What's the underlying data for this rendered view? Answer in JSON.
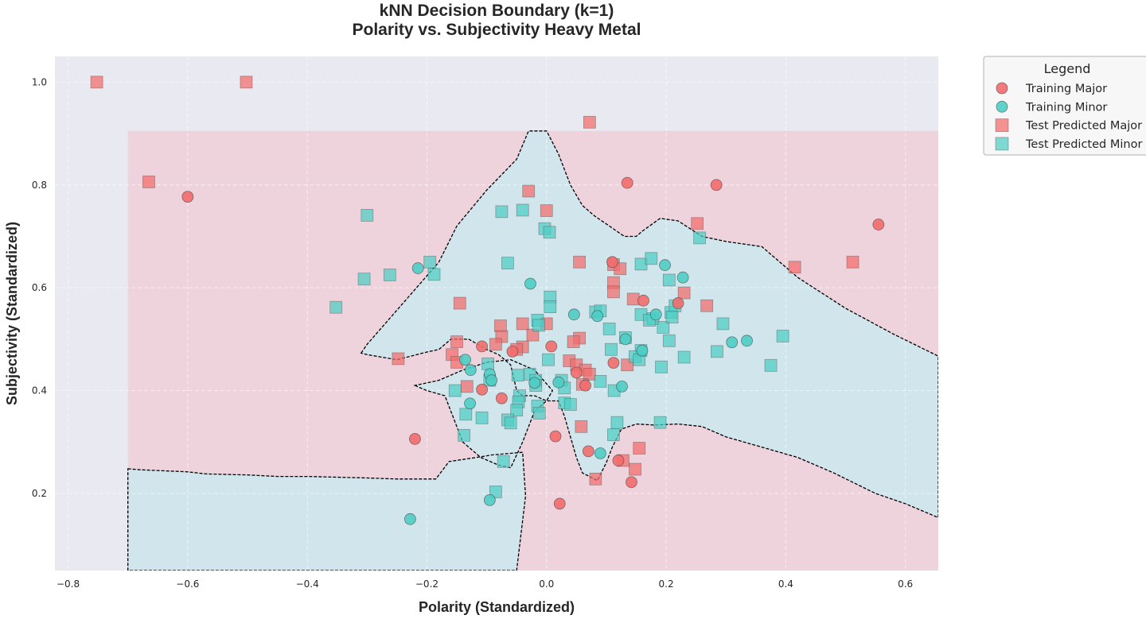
{
  "chart_data": {
    "type": "scatter",
    "title": "kNN Decision Boundary (k=1)",
    "subtitle": "Polarity vs. Subjectivity Heavy Metal",
    "xlabel": "Polarity (Standardized)",
    "ylabel": "Subjectivity (Standardized)",
    "xlim": [
      -0.822,
      0.655
    ],
    "ylim": [
      0.05,
      1.05
    ],
    "xticks": [
      "−0.8",
      "−0.6",
      "−0.4",
      "−0.2",
      "0.0",
      "0.2",
      "0.4",
      "0.6"
    ],
    "yticks": [
      "0.2",
      "0.4",
      "0.6",
      "0.8",
      "1.0"
    ],
    "grid": true,
    "legend": {
      "title": "Legend",
      "placement": "outside-top-right",
      "entries": [
        "Training Major",
        "Training Minor",
        "Test Predicted Major",
        "Test Predicted Minor"
      ]
    },
    "colors": {
      "major": "#f26b6b",
      "minor": "#4ecdc4",
      "region_major": "#efd3dc",
      "region_minor": "#d1e5ec",
      "plot_bg": "#e9e9f1",
      "boundary": "#000000"
    },
    "region_extent": {
      "x": [
        -0.7,
        0.655
      ],
      "y": [
        0.05,
        0.905
      ]
    },
    "region_default_class": "Major",
    "minor_regions": [
      [
        [
          -0.7,
          0.248
        ],
        [
          -0.68,
          0.246
        ],
        [
          -0.6,
          0.242
        ],
        [
          -0.57,
          0.238
        ],
        [
          -0.5,
          0.236
        ],
        [
          -0.45,
          0.233
        ],
        [
          -0.4,
          0.233
        ],
        [
          -0.3,
          0.23
        ],
        [
          -0.25,
          0.228
        ],
        [
          -0.185,
          0.228
        ],
        [
          -0.163,
          0.262
        ],
        [
          -0.117,
          0.27
        ],
        [
          -0.09,
          0.275
        ],
        [
          -0.06,
          0.278
        ],
        [
          -0.04,
          0.28
        ],
        [
          -0.035,
          0.195
        ],
        [
          -0.05,
          0.05
        ],
        [
          -0.7,
          0.05
        ]
      ],
      [
        [
          -0.31,
          0.473
        ],
        [
          -0.3,
          0.49
        ],
        [
          -0.24,
          0.57
        ],
        [
          -0.18,
          0.65
        ],
        [
          -0.15,
          0.72
        ],
        [
          -0.1,
          0.79
        ],
        [
          -0.05,
          0.85
        ],
        [
          -0.03,
          0.905
        ],
        [
          0.0,
          0.905
        ],
        [
          0.02,
          0.86
        ],
        [
          0.04,
          0.8
        ],
        [
          0.06,
          0.76
        ],
        [
          0.08,
          0.74
        ],
        [
          0.105,
          0.72
        ],
        [
          0.13,
          0.7
        ],
        [
          0.15,
          0.7
        ],
        [
          0.16,
          0.71
        ],
        [
          0.19,
          0.735
        ],
        [
          0.22,
          0.73
        ],
        [
          0.26,
          0.7
        ],
        [
          0.3,
          0.69
        ],
        [
          0.36,
          0.68
        ],
        [
          0.42,
          0.62
        ],
        [
          0.5,
          0.56
        ],
        [
          0.58,
          0.51
        ],
        [
          0.655,
          0.467
        ],
        [
          0.655,
          0.153
        ],
        [
          0.6,
          0.18
        ],
        [
          0.55,
          0.2
        ],
        [
          0.48,
          0.24
        ],
        [
          0.42,
          0.27
        ],
        [
          0.36,
          0.29
        ],
        [
          0.3,
          0.31
        ],
        [
          0.26,
          0.33
        ],
        [
          0.22,
          0.335
        ],
        [
          0.18,
          0.333
        ],
        [
          0.15,
          0.335
        ],
        [
          0.125,
          0.325
        ],
        [
          0.11,
          0.29
        ],
        [
          0.1,
          0.26
        ],
        [
          0.085,
          0.225
        ],
        [
          0.06,
          0.24
        ],
        [
          0.05,
          0.27
        ],
        [
          0.04,
          0.31
        ],
        [
          0.03,
          0.35
        ],
        [
          0.02,
          0.38
        ],
        [
          0.0,
          0.38
        ],
        [
          -0.02,
          0.39
        ],
        [
          -0.04,
          0.39
        ],
        [
          -0.05,
          0.4
        ],
        [
          -0.06,
          0.45
        ],
        [
          -0.08,
          0.47
        ],
        [
          -0.1,
          0.48
        ],
        [
          -0.13,
          0.5
        ],
        [
          -0.16,
          0.5
        ],
        [
          -0.18,
          0.48
        ],
        [
          -0.2,
          0.475
        ],
        [
          -0.25,
          0.46
        ],
        [
          -0.3,
          0.47
        ]
      ],
      [
        [
          -0.22,
          0.41
        ],
        [
          -0.2,
          0.4
        ],
        [
          -0.17,
          0.39
        ],
        [
          -0.15,
          0.33
        ],
        [
          -0.14,
          0.3
        ],
        [
          -0.11,
          0.27
        ],
        [
          -0.08,
          0.255
        ],
        [
          -0.06,
          0.25
        ],
        [
          -0.04,
          0.3
        ],
        [
          -0.02,
          0.36
        ],
        [
          0.0,
          0.38
        ],
        [
          0.01,
          0.4
        ],
        [
          -0.02,
          0.44
        ],
        [
          -0.06,
          0.46
        ],
        [
          -0.1,
          0.455
        ],
        [
          -0.14,
          0.44
        ],
        [
          -0.18,
          0.42
        ]
      ]
    ],
    "series": [
      {
        "name": "Training Major",
        "marker": "circle",
        "color": "#f26b6b",
        "points": [
          [
            -0.6,
            0.777
          ],
          [
            0.135,
            0.804
          ],
          [
            0.284,
            0.8
          ],
          [
            0.555,
            0.723
          ],
          [
            0.11,
            0.65
          ],
          [
            0.162,
            0.575
          ],
          [
            0.22,
            0.57
          ],
          [
            -0.108,
            0.486
          ],
          [
            0.008,
            0.486
          ],
          [
            -0.057,
            0.476
          ],
          [
            -0.108,
            0.402
          ],
          [
            -0.075,
            0.385
          ],
          [
            0.05,
            0.435
          ],
          [
            0.065,
            0.41
          ],
          [
            0.112,
            0.454
          ],
          [
            -0.22,
            0.306
          ],
          [
            0.015,
            0.311
          ],
          [
            0.07,
            0.282
          ],
          [
            0.12,
            0.264
          ],
          [
            0.142,
            0.222
          ],
          [
            0.022,
            0.18
          ]
        ]
      },
      {
        "name": "Training Minor",
        "marker": "circle",
        "color": "#4ecdc4",
        "points": [
          [
            -0.215,
            0.638
          ],
          [
            -0.027,
            0.608
          ],
          [
            0.198,
            0.644
          ],
          [
            0.228,
            0.62
          ],
          [
            0.046,
            0.548
          ],
          [
            0.085,
            0.545
          ],
          [
            0.183,
            0.548
          ],
          [
            0.132,
            0.5
          ],
          [
            0.16,
            0.478
          ],
          [
            0.31,
            0.494
          ],
          [
            0.335,
            0.497
          ],
          [
            -0.136,
            0.46
          ],
          [
            -0.127,
            0.44
          ],
          [
            -0.095,
            0.432
          ],
          [
            -0.092,
            0.42
          ],
          [
            -0.02,
            0.415
          ],
          [
            0.02,
            0.416
          ],
          [
            0.126,
            0.408
          ],
          [
            -0.128,
            0.375
          ],
          [
            -0.228,
            0.15
          ],
          [
            -0.095,
            0.187
          ],
          [
            0.09,
            0.278
          ]
        ]
      },
      {
        "name": "Test Predicted Major",
        "marker": "square",
        "color": "#f26b6b",
        "points": [
          [
            -0.752,
            1.0
          ],
          [
            -0.502,
            1.0
          ],
          [
            -0.665,
            0.806
          ],
          [
            0.072,
            0.922
          ],
          [
            -0.03,
            0.788
          ],
          [
            0.0,
            0.75
          ],
          [
            0.252,
            0.725
          ],
          [
            0.055,
            0.65
          ],
          [
            0.112,
            0.645
          ],
          [
            0.123,
            0.637
          ],
          [
            0.415,
            0.64
          ],
          [
            0.512,
            0.65
          ],
          [
            0.112,
            0.61
          ],
          [
            0.112,
            0.592
          ],
          [
            0.23,
            0.59
          ],
          [
            0.268,
            0.565
          ],
          [
            0.145,
            0.578
          ],
          [
            -0.145,
            0.57
          ],
          [
            -0.04,
            0.53
          ],
          [
            0.0,
            0.53
          ],
          [
            -0.077,
            0.526
          ],
          [
            -0.075,
            0.505
          ],
          [
            -0.023,
            0.508
          ],
          [
            0.055,
            0.502
          ],
          [
            -0.15,
            0.495
          ],
          [
            -0.085,
            0.49
          ],
          [
            0.045,
            0.495
          ],
          [
            -0.04,
            0.485
          ],
          [
            -0.05,
            0.48
          ],
          [
            -0.158,
            0.47
          ],
          [
            -0.248,
            0.462
          ],
          [
            -0.15,
            0.455
          ],
          [
            0.038,
            0.458
          ],
          [
            0.05,
            0.45
          ],
          [
            0.065,
            0.44
          ],
          [
            0.072,
            0.432
          ],
          [
            0.06,
            0.412
          ],
          [
            0.135,
            0.45
          ],
          [
            -0.133,
            0.408
          ],
          [
            0.058,
            0.33
          ],
          [
            0.155,
            0.288
          ],
          [
            0.128,
            0.264
          ],
          [
            0.148,
            0.247
          ],
          [
            0.082,
            0.228
          ]
        ]
      },
      {
        "name": "Test Predicted Minor",
        "marker": "square",
        "color": "#4ecdc4",
        "points": [
          [
            -0.3,
            0.741
          ],
          [
            -0.075,
            0.748
          ],
          [
            -0.04,
            0.751
          ],
          [
            -0.003,
            0.715
          ],
          [
            0.005,
            0.708
          ],
          [
            -0.195,
            0.65
          ],
          [
            -0.065,
            0.648
          ],
          [
            -0.305,
            0.617
          ],
          [
            -0.262,
            0.625
          ],
          [
            -0.188,
            0.626
          ],
          [
            0.158,
            0.646
          ],
          [
            0.175,
            0.657
          ],
          [
            0.256,
            0.697
          ],
          [
            0.205,
            0.615
          ],
          [
            0.006,
            0.582
          ],
          [
            0.006,
            0.563
          ],
          [
            -0.352,
            0.562
          ],
          [
            0.082,
            0.553
          ],
          [
            0.09,
            0.555
          ],
          [
            0.158,
            0.548
          ],
          [
            0.178,
            0.54
          ],
          [
            0.208,
            0.552
          ],
          [
            0.215,
            0.565
          ],
          [
            0.195,
            0.523
          ],
          [
            0.21,
            0.543
          ],
          [
            0.172,
            0.537
          ],
          [
            0.105,
            0.52
          ],
          [
            0.295,
            0.53
          ],
          [
            0.395,
            0.506
          ],
          [
            0.205,
            0.497
          ],
          [
            0.132,
            0.503
          ],
          [
            -0.015,
            0.537
          ],
          [
            -0.013,
            0.527
          ],
          [
            -0.098,
            0.452
          ],
          [
            0.108,
            0.48
          ],
          [
            0.158,
            0.478
          ],
          [
            0.148,
            0.466
          ],
          [
            0.155,
            0.46
          ],
          [
            0.192,
            0.446
          ],
          [
            0.23,
            0.465
          ],
          [
            0.285,
            0.476
          ],
          [
            0.375,
            0.449
          ],
          [
            0.003,
            0.46
          ],
          [
            -0.028,
            0.432
          ],
          [
            -0.048,
            0.43
          ],
          [
            -0.018,
            0.42
          ],
          [
            -0.018,
            0.41
          ],
          [
            0.025,
            0.42
          ],
          [
            0.03,
            0.405
          ],
          [
            0.09,
            0.418
          ],
          [
            0.113,
            0.4
          ],
          [
            -0.095,
            0.42
          ],
          [
            -0.153,
            0.4
          ],
          [
            -0.045,
            0.39
          ],
          [
            -0.047,
            0.378
          ],
          [
            -0.015,
            0.37
          ],
          [
            0.03,
            0.376
          ],
          [
            0.04,
            0.373
          ],
          [
            -0.135,
            0.354
          ],
          [
            -0.108,
            0.347
          ],
          [
            -0.012,
            0.356
          ],
          [
            -0.05,
            0.362
          ],
          [
            -0.065,
            0.343
          ],
          [
            -0.06,
            0.337
          ],
          [
            0.118,
            0.338
          ],
          [
            0.19,
            0.338
          ],
          [
            0.112,
            0.314
          ],
          [
            -0.138,
            0.313
          ],
          [
            -0.072,
            0.262
          ],
          [
            -0.085,
            0.203
          ]
        ]
      }
    ]
  }
}
